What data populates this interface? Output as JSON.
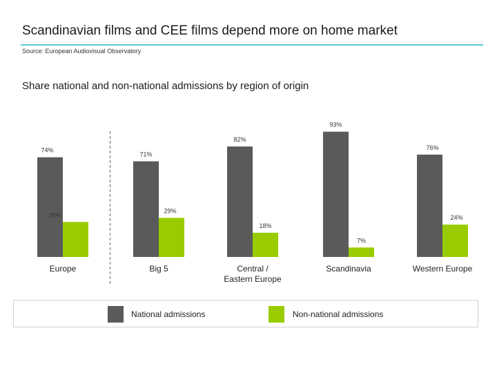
{
  "header": {
    "title": "Scandinavian films and CEE films depend more on home market",
    "source": "Source: European Audiovisual Observatory",
    "subtitle": "Share national and non-national admissions by region of origin"
  },
  "colors": {
    "national": "#5a5a5a",
    "non_national": "#99cc00",
    "rule": "#5fc9d0",
    "divider": "#666666"
  },
  "legend": {
    "national_label": "National admissions",
    "non_national_label": "Non-national admissions"
  },
  "chart_data": {
    "type": "bar",
    "title": "Share national and non-national admissions by region of origin",
    "categories": [
      "Europe",
      "Big 5",
      "Central /\nEastern Europe",
      "Scandinavia",
      "Western Europe"
    ],
    "series": [
      {
        "name": "National admissions",
        "values": [
          74,
          71,
          82,
          93,
          76
        ],
        "labels": [
          "74%",
          "71%",
          "82%",
          "93%",
          "76%"
        ]
      },
      {
        "name": "Non-national admissions",
        "values": [
          26,
          29,
          18,
          7,
          24
        ],
        "labels": [
          "26%",
          "29%",
          "18%",
          "7%",
          "24%"
        ]
      }
    ],
    "ylim": [
      0,
      100
    ],
    "grid": false,
    "legend_position": "bottom",
    "divider_after_category": "Europe"
  }
}
